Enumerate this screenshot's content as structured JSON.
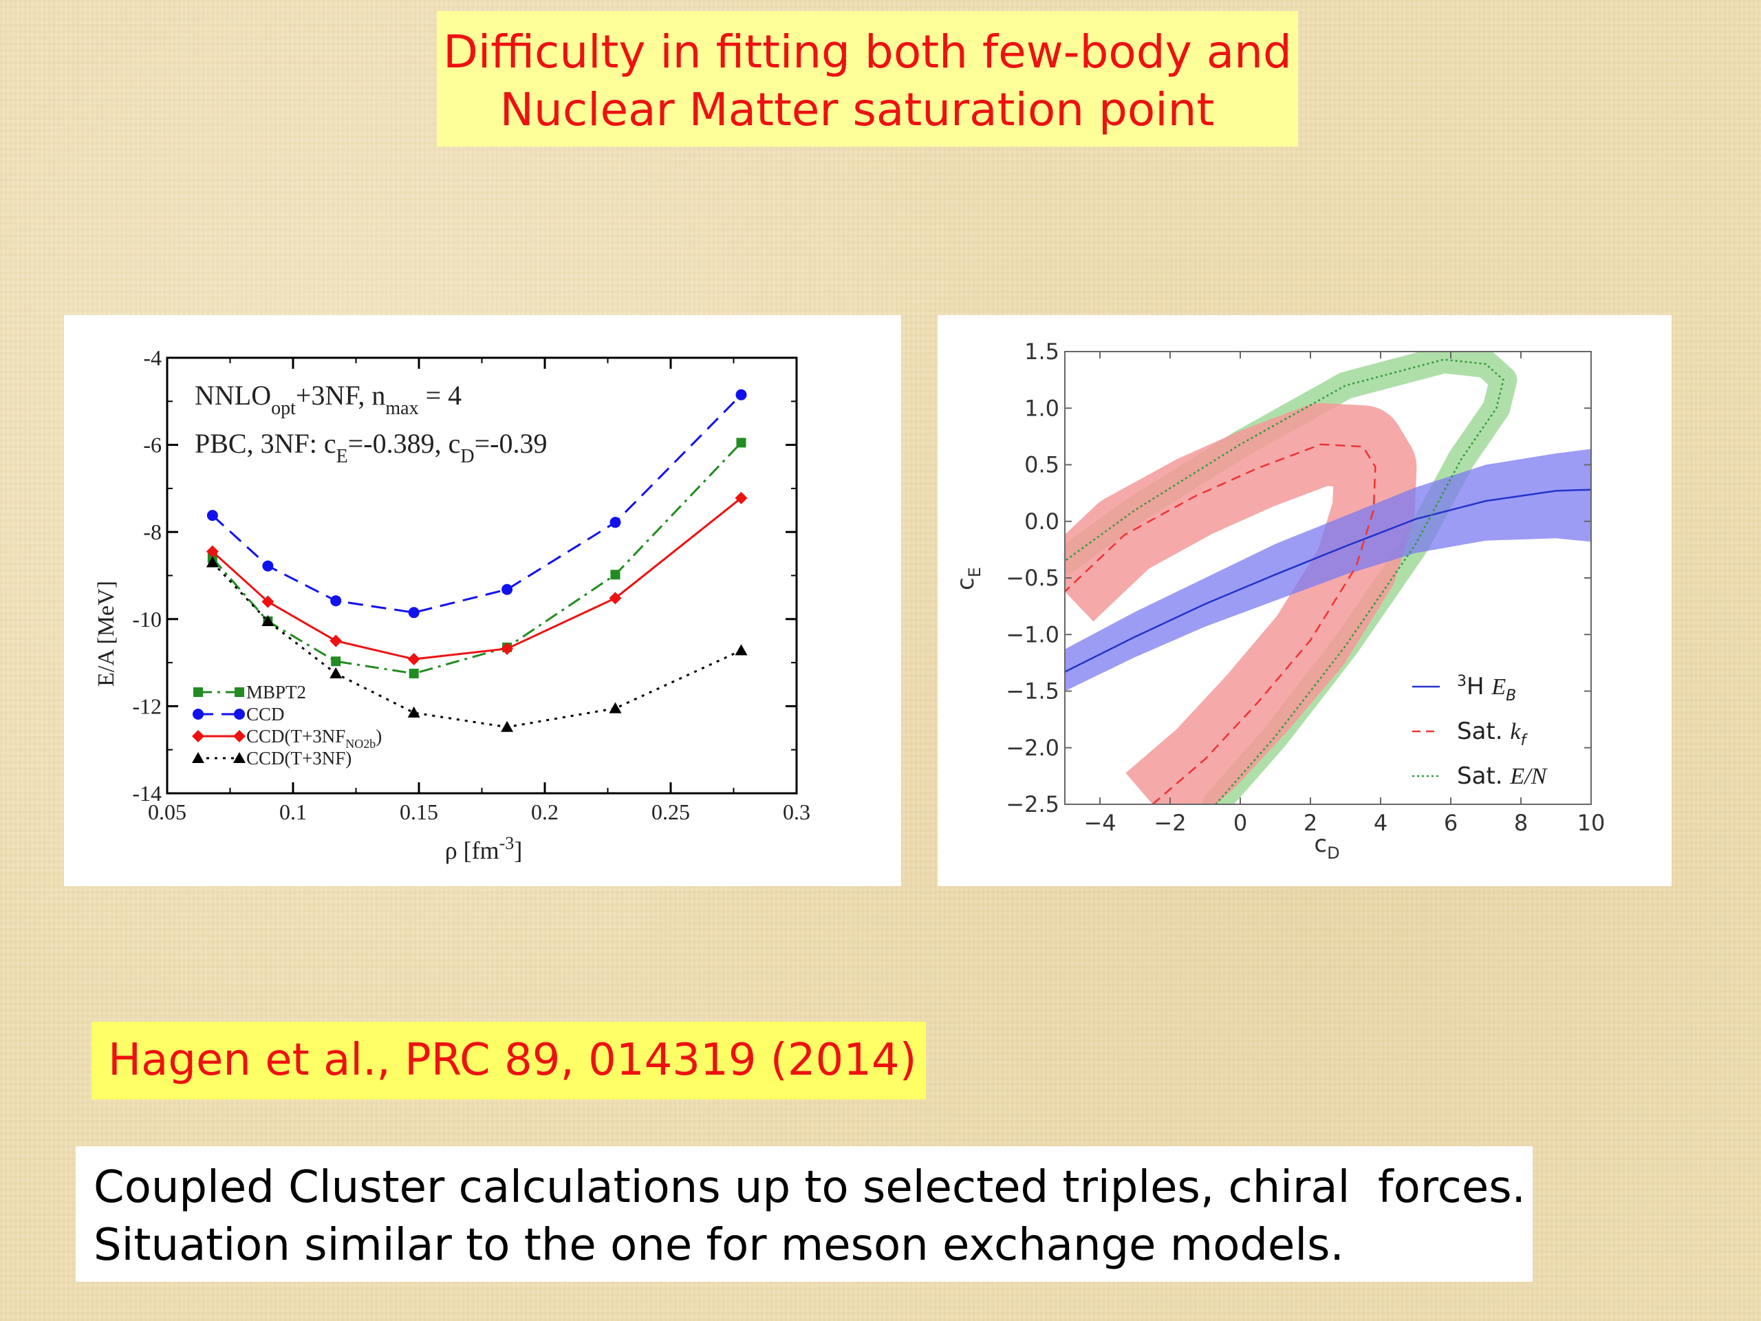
{
  "slide": {
    "title_lines": [
      "Difficulty in fitting both few-body and",
      "Nuclear Matter saturation point"
    ],
    "reference": "Hagen et al., PRC 89, 014319 (2014)",
    "note_lines": [
      "Coupled Cluster calculations up to selected triples, chiral  forces.",
      "Situation similar to the one for meson exchange models."
    ],
    "colors": {
      "title_bg": "#ffff99",
      "title_text": "#ee1111",
      "ref_bg": "#ffff66"
    }
  },
  "chart_data": [
    {
      "type": "line",
      "annotation": {
        "line1": {
          "a": "NNLO",
          "b": "opt",
          "c": "+3NF, n",
          "d": "max",
          "e": " = 4"
        },
        "line2": {
          "a": "PBC, 3NF: c",
          "b": "E",
          "c": "=-0.389, c",
          "d": "D",
          "e": "=-0.39"
        }
      },
      "xlabel": {
        "pre": "ρ [fm",
        "sup": "-3",
        "post": "]"
      },
      "ylabel": "E/A [MeV]",
      "xlim": [
        0.05,
        0.3
      ],
      "ylim": [
        -14,
        -4
      ],
      "x_ticks": [
        "0.05",
        "0.1",
        "0.15",
        "0.2",
        "0.25",
        "0.3"
      ],
      "y_ticks": [
        "-4",
        "-6",
        "-8",
        "-10",
        "-12",
        "-14"
      ],
      "x": [
        0.068,
        0.09,
        0.117,
        0.148,
        0.185,
        0.228,
        0.278
      ],
      "series": [
        {
          "name": "MBPT2",
          "color": "#228b22",
          "dash": "dashdot",
          "marker": "square",
          "values": [
            -8.6,
            -10.05,
            -10.97,
            -11.25,
            -10.65,
            -8.98,
            -5.95
          ]
        },
        {
          "name": "CCD",
          "color": "#1111ee",
          "dash": "dashed",
          "marker": "circle",
          "values": [
            -7.62,
            -8.78,
            -9.58,
            -9.85,
            -9.32,
            -7.78,
            -4.85
          ]
        },
        {
          "name": "CCD(T+3NF",
          "name_sub": "NO2b",
          "name_post": ")",
          "color": "#ee1111",
          "dash": "solid",
          "marker": "diamond",
          "values": [
            -8.45,
            -9.6,
            -10.5,
            -10.92,
            -10.68,
            -9.52,
            -7.22
          ]
        },
        {
          "name": "CCD(T+3NF)",
          "color": "#000000",
          "dash": "dotted",
          "marker": "triangle",
          "values": [
            -8.7,
            -10.05,
            -11.25,
            -12.15,
            -12.48,
            -12.05,
            -10.72
          ]
        }
      ]
    },
    {
      "type": "line",
      "xlabel": {
        "a": "c",
        "b": "D"
      },
      "ylabel": {
        "a": "c",
        "b": "E"
      },
      "xlim": [
        -5,
        10
      ],
      "ylim": [
        -2.5,
        1.5
      ],
      "x_ticks": [
        "−4",
        "−2",
        "0",
        "2",
        "4",
        "6",
        "8",
        "10"
      ],
      "x_tick_values": [
        -4,
        -2,
        0,
        2,
        4,
        6,
        8,
        10
      ],
      "y_ticks": [
        "1.5",
        "1.0",
        "0.5",
        "0.0",
        "−0.5",
        "−1.0",
        "−1.5",
        "−2.0",
        "−2.5"
      ],
      "y_tick_values": [
        1.5,
        1.0,
        0.5,
        0.0,
        -0.5,
        -1.0,
        -1.5,
        -2.0,
        -2.5
      ],
      "series": [
        {
          "name_sup": "3",
          "name": "H ",
          "name_it": "E",
          "name_sub": "B",
          "color": "#2233cc",
          "dash": "solid",
          "band_color": "#7b7bf0",
          "x": [
            -5,
            -3,
            -1,
            1,
            3,
            5,
            7,
            9,
            10
          ],
          "values": [
            -1.33,
            -1.02,
            -0.73,
            -0.47,
            -0.22,
            0.02,
            0.18,
            0.27,
            0.28
          ],
          "band_lower": [
            -1.5,
            -1.2,
            -0.93,
            -0.7,
            -0.47,
            -0.28,
            -0.17,
            -0.15,
            -0.18
          ],
          "band_upper": [
            -1.13,
            -0.8,
            -0.5,
            -0.2,
            0.05,
            0.3,
            0.5,
            0.6,
            0.64
          ]
        },
        {
          "name": "Sat. ",
          "name_it": "k",
          "name_sub": "f",
          "color": "#ee3333",
          "dash": "dashed",
          "band_color": "#f49a9a",
          "x": [
            -2.5,
            -1,
            0.5,
            2,
            3.3,
            3.8,
            3.85,
            3.5,
            2.3,
            0.5,
            -1.3,
            -3.3,
            -5
          ],
          "values": [
            -2.5,
            -2.1,
            -1.6,
            -1.05,
            -0.4,
            0.1,
            0.48,
            0.66,
            0.68,
            0.47,
            0.22,
            -0.12,
            -0.62
          ]
        },
        {
          "name": "Sat. ",
          "name_it": "E/N",
          "color": "#2e9a3a",
          "dash": "dotted",
          "band_color": "#a6dba0",
          "x": [
            -0.7,
            1,
            3,
            5,
            6.3,
            7.3,
            7.5,
            7.0,
            5.8,
            3,
            0,
            -3,
            -5
          ],
          "values": [
            -2.5,
            -1.9,
            -1.1,
            -0.2,
            0.55,
            1.0,
            1.25,
            1.39,
            1.43,
            1.2,
            0.68,
            0.1,
            -0.35
          ]
        }
      ]
    }
  ]
}
